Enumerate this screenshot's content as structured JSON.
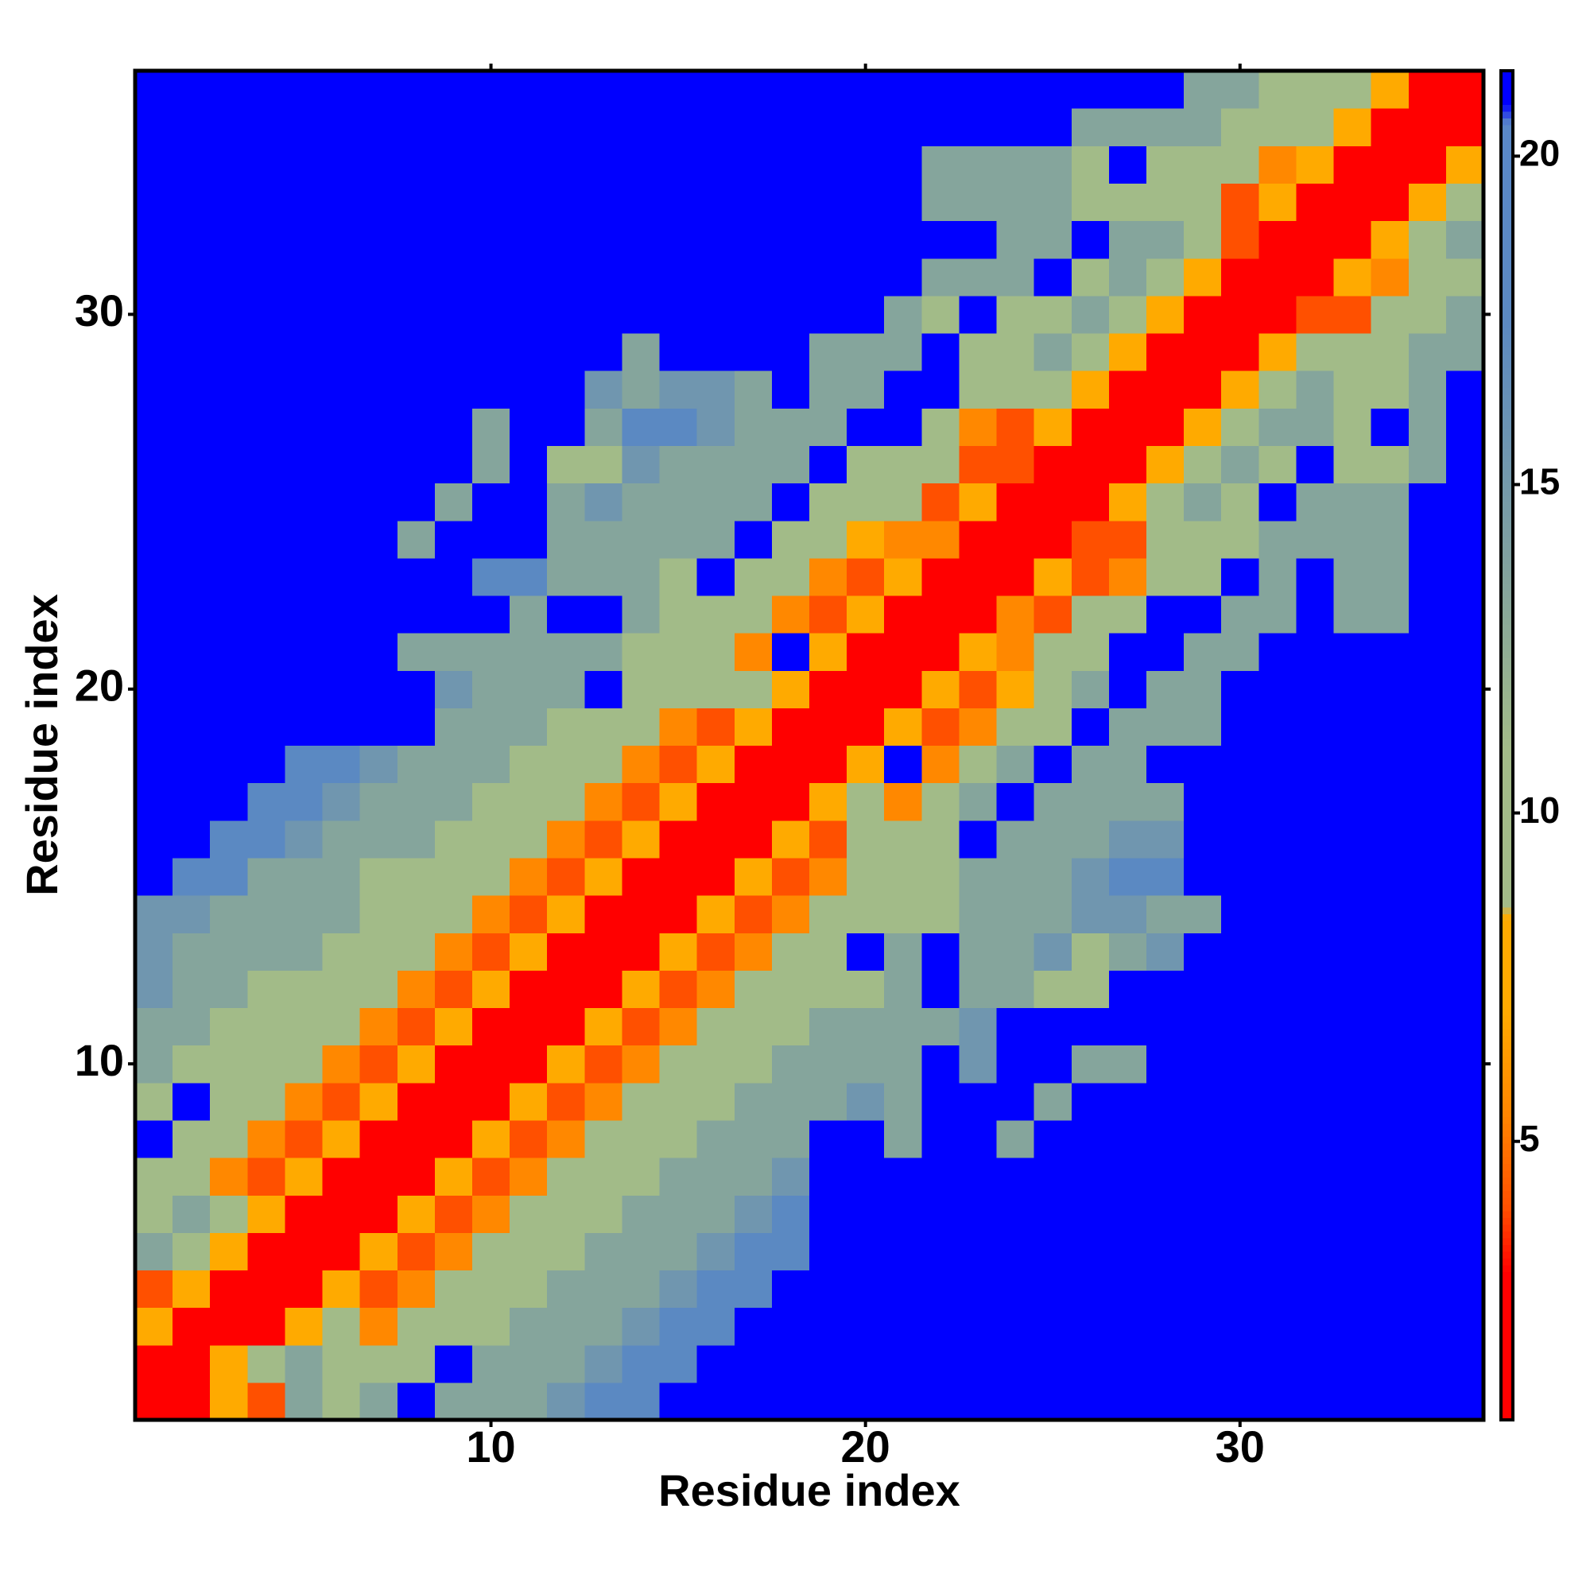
{
  "chart_data": {
    "type": "heatmap",
    "xlabel": "Residue index",
    "ylabel": "Residue index",
    "x": [
      1,
      2,
      3,
      4,
      5,
      6,
      7,
      8,
      9,
      10,
      11,
      12,
      13,
      14,
      15,
      16,
      17,
      18,
      19,
      20,
      21,
      22,
      23,
      24,
      25,
      26,
      27,
      28,
      29,
      30,
      31,
      32,
      33,
      34,
      35,
      36
    ],
    "y": [
      1,
      2,
      3,
      4,
      5,
      6,
      7,
      8,
      9,
      10,
      11,
      12,
      13,
      14,
      15,
      16,
      17,
      18,
      19,
      20,
      21,
      22,
      23,
      24,
      25,
      26,
      27,
      28,
      29,
      30,
      31,
      32,
      33,
      34,
      35,
      36
    ],
    "xlim": [
      0.5,
      36.5
    ],
    "ylim": [
      0.5,
      36.5
    ],
    "xticks": [
      10,
      20,
      30
    ],
    "yticks": [
      10,
      20,
      30
    ],
    "clim": [
      0.76,
      21.3
    ],
    "cticks": [
      5,
      10,
      15,
      20
    ],
    "colorscale": [
      [
        0.76,
        "#ff0000"
      ],
      [
        3,
        "#ff0000"
      ],
      [
        4,
        "#ff5000"
      ],
      [
        5.5,
        "#ff8800"
      ],
      [
        7,
        "#ffaa00"
      ],
      [
        8.4,
        "#ffaa00"
      ],
      [
        8.6,
        "#a2bb88"
      ],
      [
        11,
        "#a2bb88"
      ],
      [
        14,
        "#7fa0a0"
      ],
      [
        17.5,
        "#5b89c2"
      ],
      [
        20.5,
        "#5a88c8"
      ],
      [
        20.8,
        "#0000ff"
      ],
      [
        21.3,
        "#0000ff"
      ]
    ],
    "z": [
      [
        2,
        2,
        7,
        4,
        13.5,
        10.5,
        13.5,
        21,
        13.5,
        13.5,
        13.5,
        15.5,
        17.5,
        17.5,
        21,
        21,
        21,
        21,
        21,
        21,
        21,
        21,
        21,
        21,
        21,
        21,
        21,
        21,
        21,
        21,
        21,
        21,
        21,
        21,
        21,
        21
      ],
      [
        2,
        2,
        7,
        10.5,
        13.5,
        10.5,
        10.5,
        10.5,
        21,
        13.5,
        13.5,
        13.5,
        15.5,
        17.5,
        17.5,
        21,
        21,
        21,
        21,
        21,
        21,
        21,
        21,
        21,
        21,
        21,
        21,
        21,
        21,
        21,
        21,
        21,
        21,
        21,
        21,
        21
      ],
      [
        7,
        2,
        2,
        2,
        7,
        10.5,
        5.5,
        10.5,
        10.5,
        10.5,
        13.5,
        13.5,
        13.5,
        15.5,
        17.5,
        17.5,
        21,
        21,
        21,
        21,
        21,
        21,
        21,
        21,
        21,
        21,
        21,
        21,
        21,
        21,
        21,
        21,
        21,
        21,
        21,
        21
      ],
      [
        4,
        7,
        2,
        2,
        2,
        7,
        4,
        5.5,
        10.5,
        10.5,
        10.5,
        13.5,
        13.5,
        13.5,
        15.5,
        17.5,
        17.5,
        21,
        21,
        21,
        21,
        21,
        21,
        21,
        21,
        21,
        21,
        21,
        21,
        21,
        21,
        21,
        21,
        21,
        21,
        21
      ],
      [
        13.5,
        10.5,
        7,
        2,
        2,
        2,
        7,
        4,
        5.5,
        10.5,
        10.5,
        10.5,
        13.5,
        13.5,
        13.5,
        15.5,
        17.5,
        17.5,
        21,
        21,
        21,
        21,
        21,
        21,
        21,
        21,
        21,
        21,
        21,
        21,
        21,
        21,
        21,
        21,
        21,
        21
      ],
      [
        10.5,
        13.5,
        10.5,
        7,
        2,
        2,
        2,
        7,
        4,
        5.5,
        10.5,
        10.5,
        10.5,
        13.5,
        13.5,
        13.5,
        15.5,
        17.5,
        21,
        21,
        21,
        21,
        21,
        21,
        21,
        21,
        21,
        21,
        21,
        21,
        21,
        21,
        21,
        21,
        21,
        21
      ],
      [
        10.5,
        10.5,
        5.5,
        4,
        7,
        2,
        2,
        2,
        7,
        4,
        5.5,
        10.5,
        10.5,
        10.5,
        13.5,
        13.5,
        13.5,
        15.5,
        21,
        21,
        21,
        21,
        21,
        21,
        21,
        21,
        21,
        21,
        21,
        21,
        21,
        21,
        21,
        21,
        21,
        21
      ],
      [
        21,
        10.5,
        10.5,
        5.5,
        4,
        7,
        2,
        2,
        2,
        7,
        4,
        5.5,
        10.5,
        10.5,
        10.5,
        13.5,
        13.5,
        13.5,
        21,
        21,
        13.5,
        21,
        21,
        13.5,
        21,
        21,
        21,
        21,
        21,
        21,
        21,
        21,
        21,
        21,
        21,
        21
      ],
      [
        10.5,
        21,
        10.5,
        10.5,
        5.5,
        4,
        7,
        2,
        2,
        2,
        7,
        4,
        5.5,
        10.5,
        10.5,
        10.5,
        13.5,
        13.5,
        13.5,
        15.5,
        13.5,
        21,
        21,
        21,
        13.5,
        21,
        21,
        21,
        21,
        21,
        21,
        21,
        21,
        21,
        21,
        21
      ],
      [
        13.5,
        10.5,
        10.5,
        10.5,
        10.5,
        5.5,
        4,
        7,
        2,
        2,
        2,
        7,
        4,
        5.5,
        10.5,
        10.5,
        10.5,
        13.5,
        13.5,
        13.5,
        13.5,
        21,
        15.5,
        21,
        21,
        13.5,
        13.5,
        21,
        21,
        21,
        21,
        21,
        21,
        21,
        21,
        21
      ],
      [
        13.5,
        13.5,
        10.5,
        10.5,
        10.5,
        10.5,
        5.5,
        4,
        7,
        2,
        2,
        2,
        7,
        4,
        5.5,
        10.5,
        10.5,
        10.5,
        13.5,
        13.5,
        13.5,
        13.5,
        15.5,
        21,
        21,
        21,
        21,
        21,
        21,
        21,
        21,
        21,
        21,
        21,
        21,
        21
      ],
      [
        15.5,
        13.5,
        13.5,
        10.5,
        10.5,
        10.5,
        10.5,
        5.5,
        4,
        7,
        2,
        2,
        2,
        7,
        4,
        5.5,
        10.5,
        10.5,
        10.5,
        10.5,
        13.5,
        21,
        13.5,
        13.5,
        10.5,
        10.5,
        21,
        21,
        21,
        21,
        21,
        21,
        21,
        21,
        21,
        21
      ],
      [
        15.5,
        13.5,
        13.5,
        13.5,
        13.5,
        10.5,
        10.5,
        10.5,
        5.5,
        4,
        7,
        2,
        2,
        2,
        7,
        4,
        5.5,
        10.5,
        10.5,
        21,
        13.5,
        21,
        13.5,
        13.5,
        15.5,
        10.5,
        13.5,
        15.5,
        21,
        21,
        21,
        21,
        21,
        21,
        21,
        21
      ],
      [
        15.5,
        15.5,
        13.5,
        13.5,
        13.5,
        13.5,
        10.5,
        10.5,
        10.5,
        5.5,
        4,
        7,
        2,
        2,
        2,
        7,
        4,
        5.5,
        10.5,
        10.5,
        10.5,
        10.5,
        13.5,
        13.5,
        13.5,
        15.5,
        15.5,
        13.5,
        13.5,
        21,
        21,
        21,
        21,
        21,
        21,
        21
      ],
      [
        21,
        17.5,
        17.5,
        13.5,
        13.5,
        13.5,
        10.5,
        10.5,
        10.5,
        10.5,
        5.5,
        4,
        7,
        2,
        2,
        2,
        7,
        4,
        5.5,
        10.5,
        10.5,
        10.5,
        13.5,
        13.5,
        13.5,
        15.5,
        17.5,
        17.5,
        21,
        21,
        21,
        21,
        21,
        21,
        21,
        21
      ],
      [
        21,
        21,
        17.5,
        17.5,
        15.5,
        13.5,
        13.5,
        13.5,
        10.5,
        10.5,
        10.5,
        5.5,
        4,
        7,
        2,
        2,
        2,
        7,
        4,
        10.5,
        10.5,
        10.5,
        21,
        13.5,
        13.5,
        13.5,
        15.5,
        15.5,
        21,
        21,
        21,
        21,
        21,
        21,
        21,
        21
      ],
      [
        21,
        21,
        21,
        17.5,
        17.5,
        15.5,
        13.5,
        13.5,
        13.5,
        10.5,
        10.5,
        10.5,
        5.5,
        4,
        7,
        2,
        2,
        2,
        7,
        10.5,
        5.5,
        10.5,
        13.5,
        21,
        13.5,
        13.5,
        13.5,
        13.5,
        21,
        21,
        21,
        21,
        21,
        21,
        21,
        21
      ],
      [
        21,
        21,
        21,
        21,
        17.5,
        17.5,
        15.5,
        13.5,
        13.5,
        13.5,
        10.5,
        10.5,
        10.5,
        5.5,
        4,
        7,
        2,
        2,
        2,
        7,
        21,
        5.5,
        10.5,
        13.5,
        21,
        13.5,
        13.5,
        21,
        21,
        21,
        21,
        21,
        21,
        21,
        21,
        21
      ],
      [
        21,
        21,
        21,
        21,
        21,
        21,
        21,
        21,
        13.5,
        13.5,
        13.5,
        10.5,
        10.5,
        10.5,
        5.5,
        4,
        7,
        2,
        2,
        2,
        7,
        4,
        5.5,
        10.5,
        10.5,
        21,
        13.5,
        13.5,
        13.5,
        21,
        21,
        21,
        21,
        21,
        21,
        21
      ],
      [
        21,
        21,
        21,
        21,
        21,
        21,
        21,
        21,
        15.5,
        13.5,
        13.5,
        13.5,
        21,
        10.5,
        10.5,
        10.5,
        10.5,
        7,
        2,
        2,
        2,
        7,
        4,
        7,
        10.5,
        13.5,
        21,
        13.5,
        13.5,
        21,
        21,
        21,
        21,
        21,
        21,
        21
      ],
      [
        21,
        21,
        21,
        21,
        21,
        21,
        21,
        13.5,
        13.5,
        13.5,
        13.5,
        13.5,
        13.5,
        10.5,
        10.5,
        10.5,
        5.5,
        21,
        7,
        2,
        2,
        2,
        7,
        5.5,
        10.5,
        10.5,
        21,
        21,
        13.5,
        13.5,
        21,
        21,
        21,
        21,
        21,
        21
      ],
      [
        21,
        21,
        21,
        21,
        21,
        21,
        21,
        21,
        21,
        21,
        13.5,
        21,
        21,
        13.5,
        10.5,
        10.5,
        10.5,
        5.5,
        4,
        7,
        2,
        2,
        2,
        5.5,
        4,
        10.5,
        10.5,
        21,
        21,
        13.5,
        13.5,
        21,
        13.5,
        13.5,
        21,
        21
      ],
      [
        21,
        21,
        21,
        21,
        21,
        21,
        21,
        21,
        21,
        17.5,
        17.5,
        13.5,
        13.5,
        13.5,
        10.5,
        21,
        10.5,
        10.5,
        5.5,
        4,
        7,
        2,
        2,
        2,
        7,
        4,
        5.5,
        10.5,
        10.5,
        21,
        13.5,
        21,
        13.5,
        13.5,
        21,
        21
      ],
      [
        21,
        21,
        21,
        21,
        21,
        21,
        21,
        13.5,
        21,
        21,
        21,
        13.5,
        13.5,
        13.5,
        13.5,
        13.5,
        21,
        10.5,
        10.5,
        7,
        5.5,
        5.5,
        2,
        2,
        2,
        4,
        4,
        10.5,
        10.5,
        10.5,
        13.5,
        13.5,
        13.5,
        13.5,
        21,
        21
      ],
      [
        21,
        21,
        21,
        21,
        21,
        21,
        21,
        21,
        13.5,
        21,
        21,
        13.5,
        15.5,
        13.5,
        13.5,
        13.5,
        13.5,
        21,
        10.5,
        10.5,
        10.5,
        4,
        7,
        2,
        2,
        2,
        7,
        10.5,
        13.5,
        10.5,
        21,
        13.5,
        13.5,
        13.5,
        21,
        21
      ],
      [
        21,
        21,
        21,
        21,
        21,
        21,
        21,
        21,
        21,
        13.5,
        21,
        10.5,
        10.5,
        15.5,
        13.5,
        13.5,
        13.5,
        13.5,
        21,
        10.5,
        10.5,
        10.5,
        4,
        4,
        2,
        2,
        2,
        7,
        10.5,
        13.5,
        10.5,
        21,
        10.5,
        10.5,
        13.5,
        21
      ],
      [
        21,
        21,
        21,
        21,
        21,
        21,
        21,
        21,
        21,
        13.5,
        21,
        21,
        13.5,
        17.5,
        17.5,
        15.5,
        13.5,
        13.5,
        13.5,
        21,
        21,
        10.5,
        5.5,
        4,
        7,
        2,
        2,
        2,
        7,
        10.5,
        13.5,
        13.5,
        10.5,
        21,
        13.5,
        21
      ],
      [
        21,
        21,
        21,
        21,
        21,
        21,
        21,
        21,
        21,
        21,
        21,
        21,
        15.5,
        13.5,
        15.5,
        15.5,
        13.5,
        21,
        13.5,
        13.5,
        21,
        21,
        10.5,
        10.5,
        10.5,
        7,
        2,
        2,
        2,
        7,
        10.5,
        13.5,
        10.5,
        10.5,
        13.5,
        21
      ],
      [
        21,
        21,
        21,
        21,
        21,
        21,
        21,
        21,
        21,
        21,
        21,
        21,
        21,
        13.5,
        21,
        21,
        21,
        21,
        13.5,
        13.5,
        13.5,
        21,
        10.5,
        10.5,
        13.5,
        10.5,
        7,
        2,
        2,
        2,
        7,
        10.5,
        10.5,
        10.5,
        13.5,
        13.5
      ],
      [
        21,
        21,
        21,
        21,
        21,
        21,
        21,
        21,
        21,
        21,
        21,
        21,
        21,
        21,
        21,
        21,
        21,
        21,
        21,
        21,
        13.5,
        10.5,
        21,
        10.5,
        10.5,
        13.5,
        10.5,
        7,
        2,
        2,
        2,
        4,
        4,
        10.5,
        10.5,
        13.5
      ],
      [
        21,
        21,
        21,
        21,
        21,
        21,
        21,
        21,
        21,
        21,
        21,
        21,
        21,
        21,
        21,
        21,
        21,
        21,
        21,
        21,
        21,
        13.5,
        13.5,
        13.5,
        21,
        10.5,
        13.5,
        10.5,
        7,
        2,
        2,
        2,
        7,
        5.5,
        10.5,
        10.5
      ],
      [
        21,
        21,
        21,
        21,
        21,
        21,
        21,
        21,
        21,
        21,
        21,
        21,
        21,
        21,
        21,
        21,
        21,
        21,
        21,
        21,
        21,
        21,
        21,
        13.5,
        13.5,
        21,
        13.5,
        13.5,
        10.5,
        4,
        2,
        2,
        2,
        7,
        10.5,
        13.5
      ],
      [
        21,
        21,
        21,
        21,
        21,
        21,
        21,
        21,
        21,
        21,
        21,
        21,
        21,
        21,
        21,
        21,
        21,
        21,
        21,
        21,
        21,
        13.5,
        13.5,
        13.5,
        13.5,
        10.5,
        10.5,
        10.5,
        10.5,
        4,
        7,
        2,
        2,
        2,
        7,
        10.5
      ],
      [
        21,
        21,
        21,
        21,
        21,
        21,
        21,
        21,
        21,
        21,
        21,
        21,
        21,
        21,
        21,
        21,
        21,
        21,
        21,
        21,
        21,
        13.5,
        13.5,
        13.5,
        13.5,
        10.5,
        21,
        10.5,
        10.5,
        10.5,
        5.5,
        7,
        2,
        2,
        2,
        7
      ],
      [
        21,
        21,
        21,
        21,
        21,
        21,
        21,
        21,
        21,
        21,
        21,
        21,
        21,
        21,
        21,
        21,
        21,
        21,
        21,
        21,
        21,
        21,
        21,
        21,
        21,
        13.5,
        13.5,
        13.5,
        13.5,
        10.5,
        10.5,
        10.5,
        7,
        2,
        2,
        2
      ],
      [
        21,
        21,
        21,
        21,
        21,
        21,
        21,
        21,
        21,
        21,
        21,
        21,
        21,
        21,
        21,
        21,
        21,
        21,
        21,
        21,
        21,
        21,
        21,
        21,
        21,
        21,
        21,
        21,
        13.5,
        13.5,
        10.5,
        10.5,
        10.5,
        7,
        2,
        2
      ]
    ]
  }
}
